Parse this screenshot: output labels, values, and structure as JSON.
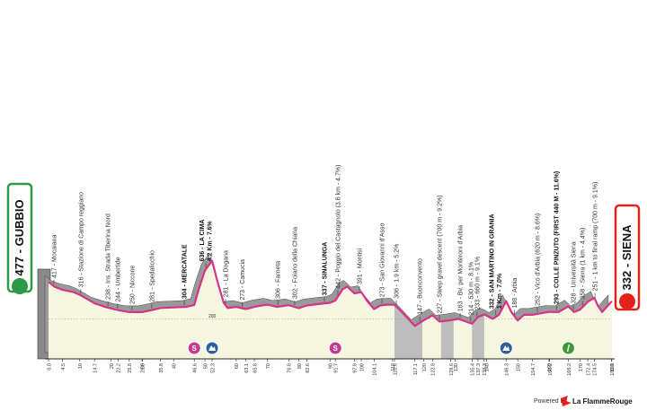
{
  "chart_data": {
    "type": "area",
    "start": "477 - GUBBIO",
    "finish": "332 - SIENA",
    "color": "#d6338a",
    "fill": "#f5f6df",
    "shadow": "#9a9a9a",
    "xlim": [
      0,
      181
    ],
    "ylim": [
      -100,
      700
    ],
    "yticks": [
      200
    ],
    "x": [
      0,
      2,
      4.5,
      8,
      10,
      14.7,
      18,
      22.2,
      25.8,
      29.9,
      33,
      35.8,
      40,
      44,
      46.6,
      48,
      50,
      52.3,
      54,
      56,
      57.3,
      60,
      63.1,
      65.8,
      68,
      70,
      73,
      76.8,
      80,
      82.6,
      86,
      90,
      91.7,
      94,
      95.5,
      97.8,
      100,
      102,
      104.1,
      106,
      108,
      110.6,
      113,
      117.1,
      120,
      122.8,
      125,
      128.6,
      131,
      135.4,
      137.3,
      139.3,
      142,
      144,
      146.3,
      148,
      150,
      152,
      154.7,
      157,
      160.2,
      163,
      166.2,
      168,
      170,
      172.4,
      174.5,
      175.6,
      177,
      180.1
    ],
    "values": [
      477,
      440,
      417,
      400,
      380,
      316,
      290,
      265,
      250,
      250,
      265,
      281,
      285,
      290,
      304,
      420,
      560,
      636,
      480,
      320,
      281,
      290,
      273,
      290,
      300,
      306,
      290,
      302,
      280,
      300,
      310,
      320,
      337,
      420,
      442,
      391,
      400,
      330,
      273,
      300,
      306,
      306,
      250,
      147,
      190,
      227,
      180,
      190,
      200,
      163,
      214,
      233,
      200,
      230,
      332,
      250,
      188,
      230,
      230,
      240,
      252,
      250,
      293,
      250,
      270,
      328,
      358,
      300,
      251,
      332
    ],
    "xticks": [
      {
        "value": 0,
        "label": "0.0"
      },
      4.5,
      10,
      14.7,
      20,
      22.2,
      25.8,
      29.9,
      30,
      35.8,
      40,
      46.6,
      50,
      52.3,
      60,
      63.1,
      65.8,
      70,
      76.8,
      80,
      82.6,
      90,
      91.7,
      97.8,
      100,
      104.1,
      110,
      110.6,
      117.1,
      120,
      122.8,
      128.6,
      130,
      135.4,
      137.3,
      139.3,
      140,
      146.3,
      150,
      154.7,
      160,
      160.2,
      166.2,
      170,
      172.4,
      174.5,
      180,
      180.1
    ],
    "waypoints": [
      {
        "km": 1.7,
        "label": "417 - Mocaiana"
      },
      {
        "km": 10.3,
        "label": "316 - Stazione di Campo reggiano"
      },
      {
        "km": 19,
        "label": "238 - Ins. Strada Tiberina Nord"
      },
      {
        "km": 22.1,
        "label": "244 - Umbertide"
      },
      {
        "km": 26.7,
        "label": "250 - Niccone"
      },
      {
        "km": 33,
        "label": "281 - Spedalicchio"
      },
      {
        "km": 43.4,
        "label": "304 - MERCATALE",
        "bold": true
      },
      {
        "km": 50.3,
        "label": "636 - LA CIMA",
        "sub": "4.2 Km - 7.6%",
        "bold": true
      },
      {
        "km": 56.6,
        "label": "281 - La Dogana"
      },
      {
        "km": 62,
        "label": "273 - Camucia"
      },
      {
        "km": 73.3,
        "label": "306 - Farneta"
      },
      {
        "km": 78.7,
        "label": "302 - Foiano della Chiana"
      },
      {
        "km": 88.2,
        "label": "337 - SINALUNGA",
        "bold": true
      },
      {
        "km": 92.5,
        "label": "442 - Poggio del Castagnolo (3.6 km - 4.7%)"
      },
      {
        "km": 99.4,
        "label": "391 - Montisi"
      },
      {
        "km": 106.6,
        "label": "273 - San Giovanni d'Asso"
      },
      {
        "km": 111.2,
        "label": "306 - 1.9 km - 5.2%"
      },
      {
        "km": 118.7,
        "label": "147 - Buonconvento"
      },
      {
        "km": 125,
        "label": "227 - Steep gravel descent (700 m - 9.2%)"
      },
      {
        "km": 131.6,
        "label": "163 - Bv. per Monteroni d'Arbia"
      },
      {
        "km": 135,
        "label": "214 - 530 m - 8.1%"
      },
      {
        "km": 137,
        "label": "233 - 660 m - 9.1%"
      },
      {
        "km": 143,
        "label": "332 - SAN MARTINO IN GRANIA",
        "sub": "1 Km - 7.0%",
        "bold": true
      },
      {
        "km": 149,
        "label": "188 - Arbia"
      },
      {
        "km": 156.3,
        "label": "252 - Vico d'Arbia (620 m - 8.6%)"
      },
      {
        "km": 162.4,
        "label": "293 - COLLE PINZUTO (FIRST 440 M - 11.6%)",
        "bold": true
      },
      {
        "km": 167.8,
        "label": "328 - Università Siena"
      },
      {
        "km": 170.7,
        "label": "358 - Siena (1 km - 4.4%)"
      },
      {
        "km": 174.7,
        "label": "251 - 1 km to final ramp (700 m - 9.1%)"
      }
    ],
    "gravel": [
      [
        110.6,
        119.5
      ],
      [
        125.5,
        129.5
      ],
      [
        135.4,
        139.3
      ]
    ],
    "sprint": {
      "label": "S",
      "km": [
        46.6,
        91.7
      ]
    },
    "climb_km": [
      52.3,
      146.3
    ],
    "green_km": [
      166.2
    ],
    "footer": {
      "powered": "Powered by",
      "brand": "La FlammeRouge"
    }
  }
}
